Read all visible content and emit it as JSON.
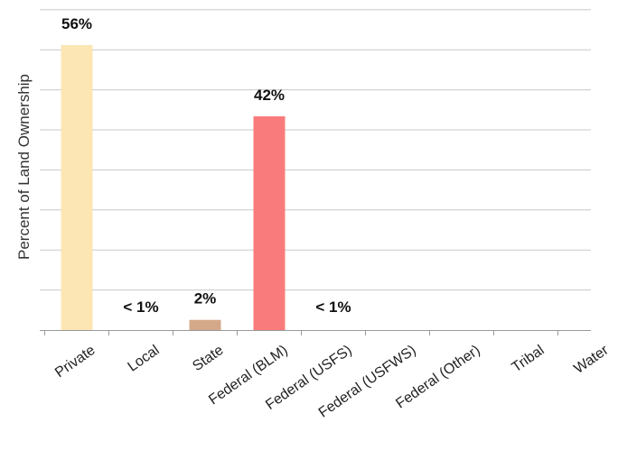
{
  "chart_data": {
    "type": "bar",
    "title": "",
    "xlabel": "",
    "ylabel": "Percent of Land Ownership",
    "ylim": [
      0,
      60
    ],
    "grid": true,
    "legend": "none",
    "categories": [
      "Private",
      "Local",
      "State",
      "Federal (BLM)",
      "Federal (USFS)",
      "Federal (USFWS)",
      "Federal (Other)",
      "Tribal",
      "Water"
    ],
    "values": [
      56,
      0,
      2,
      42,
      0,
      0,
      0,
      0,
      0
    ],
    "data_labels": [
      "56%",
      "< 1%",
      "2%",
      "42%",
      "< 1%",
      "",
      "",
      "",
      ""
    ],
    "colors": [
      "#fbe6b4",
      "#fbe6b4",
      "#d4a98a",
      "#fa7b7b",
      "#fa7b7b",
      "#fa7b7b",
      "#fa7b7b",
      "#fa7b7b",
      "#fa7b7b"
    ],
    "grid_color": "#c8c8c8",
    "axis_color": "#999999"
  }
}
